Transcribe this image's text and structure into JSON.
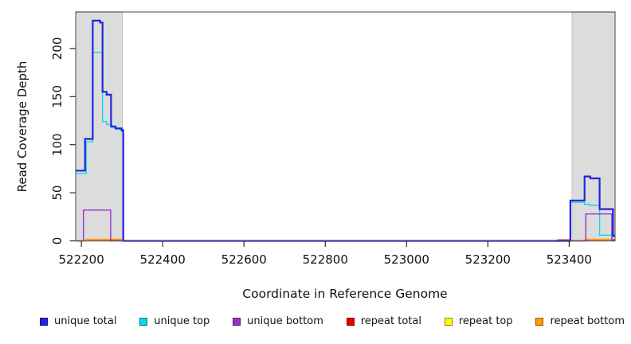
{
  "chart_data": {
    "type": "line",
    "subtype": "step",
    "title": "",
    "xlabel": "Coordinate in Reference Genome",
    "ylabel": "Read Coverage Depth",
    "xlim": [
      522186,
      523513
    ],
    "ylim": [
      0,
      238
    ],
    "x_ticks": [
      522200,
      522400,
      522600,
      522800,
      523000,
      523200,
      523400
    ],
    "y_ticks": [
      0,
      50,
      100,
      150,
      200
    ],
    "grid": false,
    "legend_position": "bottom",
    "colors": {
      "band_fill": "#dcdcdc",
      "band_border": "#b5b5b5",
      "plot_border": "#555555",
      "tick_color": "#1a1a1a",
      "text_color": "#111111"
    },
    "shaded_regions": [
      {
        "x0": 522186,
        "x1": 522301
      },
      {
        "x0": 523407,
        "x1": 523513
      }
    ],
    "series": [
      {
        "name": "unique total",
        "color": "#2323e0",
        "width": 2.2,
        "z": 5,
        "points": [
          [
            522186,
            73
          ],
          [
            522209,
            106
          ],
          [
            522228,
            229
          ],
          [
            522246,
            227
          ],
          [
            522252,
            155
          ],
          [
            522262,
            152
          ],
          [
            522273,
            119
          ],
          [
            522284,
            117
          ],
          [
            522299,
            115
          ],
          [
            522303,
            0
          ],
          [
            523403,
            42
          ],
          [
            523438,
            67
          ],
          [
            523452,
            65
          ],
          [
            523475,
            33
          ],
          [
            523508,
            5
          ],
          [
            523513,
            5
          ]
        ]
      },
      {
        "name": "unique top",
        "color": "#00dde8",
        "width": 1.3,
        "z": 3,
        "points": [
          [
            522186,
            70
          ],
          [
            522212,
            103
          ],
          [
            522228,
            196
          ],
          [
            522252,
            124
          ],
          [
            522262,
            121
          ],
          [
            522273,
            118
          ],
          [
            522284,
            116
          ],
          [
            522299,
            114
          ],
          [
            522303,
            0
          ],
          [
            523403,
            40
          ],
          [
            523438,
            38
          ],
          [
            523452,
            37
          ],
          [
            523475,
            6
          ],
          [
            523513,
            6
          ]
        ]
      },
      {
        "name": "unique bottom",
        "color": "#9932cc",
        "width": 1.4,
        "z": 4,
        "points": [
          [
            522186,
            0
          ],
          [
            522205,
            32
          ],
          [
            522272,
            0
          ],
          [
            523441,
            28
          ],
          [
            523505,
            1
          ],
          [
            523513,
            1
          ]
        ]
      },
      {
        "name": "repeat total",
        "color": "#e60000",
        "width": 1.3,
        "z": 1,
        "points": [
          [
            522186,
            0
          ],
          [
            522270,
            1
          ],
          [
            522303,
            0
          ],
          [
            523372,
            1
          ],
          [
            523403,
            0
          ],
          [
            523513,
            0
          ]
        ]
      },
      {
        "name": "repeat top",
        "color": "#ffff00",
        "width": 1.1,
        "z": 0,
        "points": [
          [
            522186,
            0
          ],
          [
            523513,
            0
          ]
        ]
      },
      {
        "name": "repeat bottom",
        "color": "#ff9e00",
        "width": 1.8,
        "z": 2,
        "points": [
          [
            522186,
            0
          ],
          [
            522212,
            1.5
          ],
          [
            522300,
            0
          ],
          [
            523440,
            1.5
          ],
          [
            523513,
            1.5
          ]
        ]
      }
    ]
  }
}
